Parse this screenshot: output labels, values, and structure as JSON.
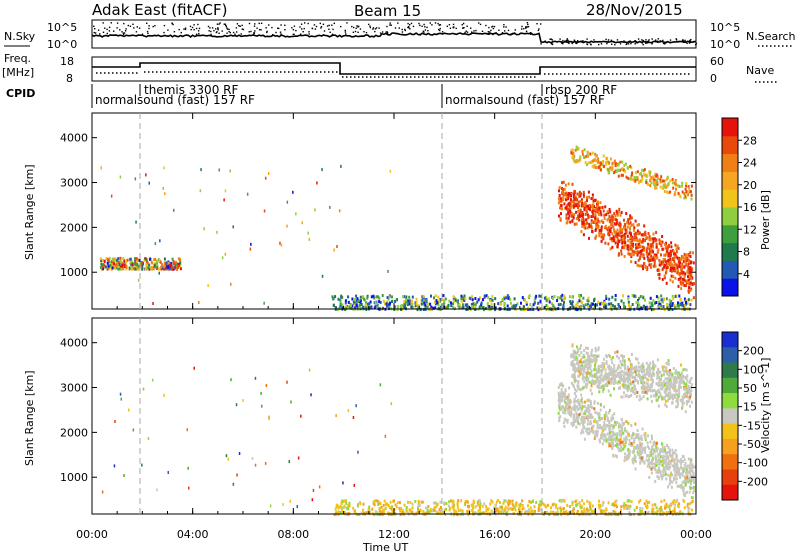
{
  "header": {
    "title": "Adak East (fitACF)",
    "beam": "Beam 15",
    "date": "28/Nov/2015"
  },
  "nsky_panel": {
    "label": "N.Sky",
    "right_label": "N.Search",
    "ticks_left": [
      "10^5",
      "10^0"
    ],
    "ticks_right": [
      "10^5",
      "10^0"
    ]
  },
  "freq_panel": {
    "label_top": "Freq.",
    "label_unit": "[MHz]",
    "ticks_left": [
      "18",
      "8"
    ],
    "ticks_right": [
      "60",
      "0"
    ],
    "right_label": "Nave"
  },
  "cpid_panel": {
    "label": "CPID",
    "segments": [
      {
        "text": "normalsound (fast) 157 RF",
        "row": "low"
      },
      {
        "text": "themis 3300 RF",
        "row": "high"
      },
      {
        "text": "normalsound (fast) 157 RF",
        "row": "low"
      },
      {
        "text": "rbsp 200 RF",
        "row": "high"
      }
    ]
  },
  "chart_data": [
    {
      "type": "heatmap",
      "name": "power",
      "ylabel": "Slant Range [km]",
      "xlim": [
        0,
        24
      ],
      "ylim": [
        180,
        4550
      ],
      "yticks": [
        1000,
        2000,
        3000,
        4000
      ],
      "colorbar": {
        "label": "Power [dB]",
        "ticks": [
          "4",
          "8",
          "12",
          "16",
          "20",
          "24",
          "28"
        ],
        "colors": [
          "#0a14e8",
          "#2358b4",
          "#1f7a4d",
          "#3f9f3f",
          "#8fcf3f",
          "#f0c419",
          "#f6a623",
          "#f07f15",
          "#e84a0c",
          "#e5130a"
        ]
      },
      "regions": [
        {
          "x": [
            18.5,
            23.9
          ],
          "y": [
            650,
            2900
          ],
          "level": "high"
        },
        {
          "x": [
            19.0,
            23.8
          ],
          "y": [
            2700,
            3700
          ],
          "level": "mid"
        },
        {
          "x": [
            0.3,
            3.5
          ],
          "y": [
            1100,
            1350
          ],
          "level": "mixed"
        },
        {
          "x": [
            9.5,
            23.8
          ],
          "y": [
            200,
            520
          ],
          "level": "low"
        }
      ]
    },
    {
      "type": "heatmap",
      "name": "velocity",
      "ylabel": "Slant Range [km]",
      "xlabel": "Time UT",
      "xlim": [
        0,
        24
      ],
      "ylim": [
        180,
        4550
      ],
      "yticks": [
        1000,
        2000,
        3000,
        4000
      ],
      "xticks": [
        "00:00",
        "04:00",
        "08:00",
        "12:00",
        "16:00",
        "20:00",
        "00:00"
      ],
      "colorbar": {
        "label": "Velocity [m s^-1]",
        "ticks": [
          "200",
          "100",
          "50",
          "15",
          "-15",
          "-50",
          "-100",
          "-200"
        ],
        "colors": [
          "#1a2fd0",
          "#2c5fa8",
          "#2f7a4a",
          "#4faa3a",
          "#8fdc3f",
          "#c8c8c0",
          "#f2c21a",
          "#f6a01f",
          "#f07010",
          "#e8400c",
          "#e5130a"
        ]
      },
      "regions": [
        {
          "x": [
            18.5,
            23.9
          ],
          "y": [
            650,
            2900
          ],
          "level": "gray"
        },
        {
          "x": [
            19.0,
            23.8
          ],
          "y": [
            2700,
            3700
          ],
          "level": "gray"
        },
        {
          "x": [
            9.5,
            23.8
          ],
          "y": [
            200,
            520
          ],
          "level": "warm"
        }
      ]
    }
  ]
}
